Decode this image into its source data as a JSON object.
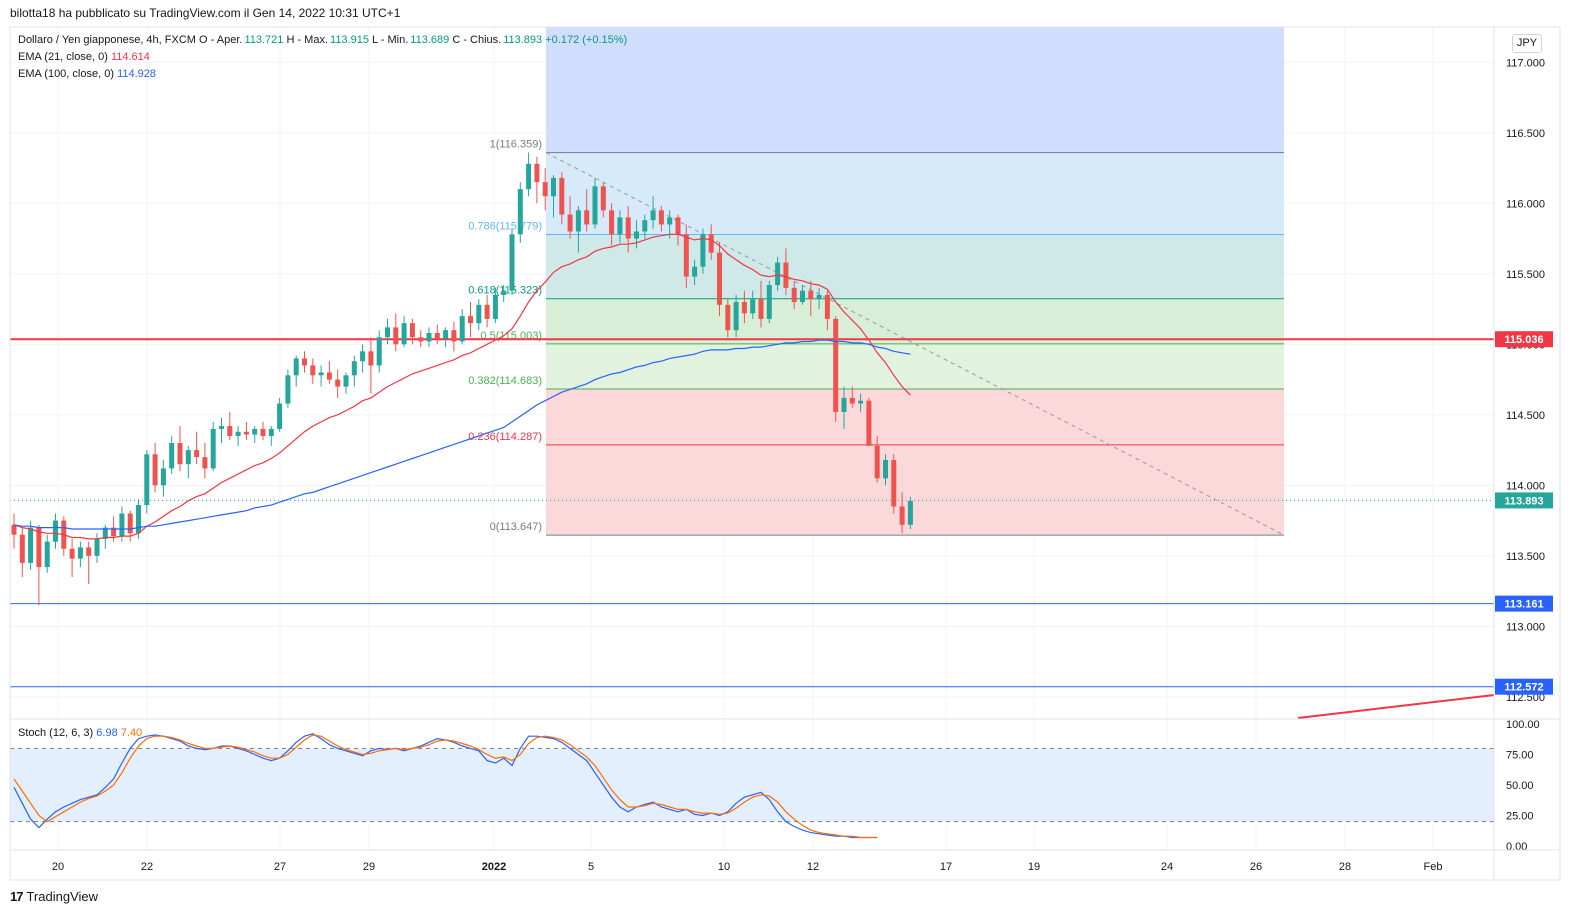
{
  "header": {
    "published_by": "bilotta18 ha pubblicato su TradingView.com il Gen 14, 2022 10:31 UTC+1"
  },
  "legend": {
    "symbol": "Dollaro / Yen giapponese, 4h, FXCM",
    "ohlc_o_label": "O - Aper.",
    "open": "113.721",
    "ohlc_h_label": "H - Max.",
    "high": "113.915",
    "ohlc_l_label": "L - Min.",
    "low": "113.689",
    "ohlc_c_label": "C - Chius.",
    "close": "113.893",
    "change": "+0.172 (+0.15%)",
    "ema21_label": "EMA (21, close, 0)",
    "ema21_value": "114.614",
    "ema100_label": "EMA (100, close, 0)",
    "ema100_value": "114.928",
    "stoch_label": "Stoch (12, 6, 3)",
    "stoch_k": "6.98",
    "stoch_d": "7.40"
  },
  "currency_button": "JPY",
  "brand": "TradingView",
  "colors": {
    "up": "#26a69a",
    "down": "#ef5350",
    "ema21": "#f23645",
    "ema100": "#2962ff",
    "stoch_k": "#2962ff",
    "stoch_d": "#ff6d00",
    "hline_red": "#f23645",
    "hline_blue": "#2962ff",
    "last_price": "#26a69a"
  },
  "chart_data": {
    "type": "candlestick",
    "symbol": "USDJPY",
    "interval": "4h",
    "ylim": [
      112.35,
      117.25
    ],
    "y_ticks": [
      "117.000",
      "116.500",
      "116.000",
      "115.500",
      "115.000",
      "114.500",
      "114.000",
      "113.500",
      "113.000",
      "112.500"
    ],
    "x_ticks": [
      "20",
      "22",
      "27",
      "29",
      "2022",
      "5",
      "10",
      "12",
      "17",
      "19",
      "24",
      "26",
      "28",
      "Feb"
    ],
    "candles": [
      [
        113.72,
        113.8,
        113.55,
        113.65
      ],
      [
        113.65,
        113.7,
        113.35,
        113.45
      ],
      [
        113.45,
        113.75,
        113.4,
        113.7
      ],
      [
        113.7,
        113.72,
        113.15,
        113.42
      ],
      [
        113.42,
        113.65,
        113.38,
        113.6
      ],
      [
        113.6,
        113.8,
        113.55,
        113.75
      ],
      [
        113.75,
        113.78,
        113.5,
        113.55
      ],
      [
        113.55,
        113.62,
        113.35,
        113.48
      ],
      [
        113.48,
        113.6,
        113.42,
        113.56
      ],
      [
        113.56,
        113.6,
        113.3,
        113.5
      ],
      [
        113.5,
        113.66,
        113.45,
        113.62
      ],
      [
        113.62,
        113.72,
        113.55,
        113.7
      ],
      [
        113.7,
        113.78,
        113.6,
        113.64
      ],
      [
        113.64,
        113.85,
        113.6,
        113.8
      ],
      [
        113.8,
        113.82,
        113.6,
        113.66
      ],
      [
        113.66,
        113.9,
        113.62,
        113.86
      ],
      [
        113.86,
        114.25,
        113.8,
        114.22
      ],
      [
        114.22,
        114.3,
        113.95,
        114.0
      ],
      [
        114.0,
        114.18,
        113.92,
        114.12
      ],
      [
        114.12,
        114.35,
        114.08,
        114.3
      ],
      [
        114.3,
        114.42,
        114.1,
        114.15
      ],
      [
        114.15,
        114.28,
        114.05,
        114.25
      ],
      [
        114.25,
        114.38,
        114.15,
        114.2
      ],
      [
        114.2,
        114.3,
        114.05,
        114.12
      ],
      [
        114.12,
        114.45,
        114.1,
        114.4
      ],
      [
        114.4,
        114.48,
        114.3,
        114.42
      ],
      [
        114.42,
        114.52,
        114.32,
        114.35
      ],
      [
        114.35,
        114.42,
        114.28,
        114.38
      ],
      [
        114.38,
        114.45,
        114.32,
        114.36
      ],
      [
        114.36,
        114.42,
        114.3,
        114.4
      ],
      [
        114.4,
        114.45,
        114.32,
        114.35
      ],
      [
        114.35,
        114.42,
        114.28,
        114.4
      ],
      [
        114.4,
        114.62,
        114.38,
        114.58
      ],
      [
        114.58,
        114.82,
        114.55,
        114.78
      ],
      [
        114.78,
        114.92,
        114.7,
        114.9
      ],
      [
        114.9,
        114.95,
        114.8,
        114.85
      ],
      [
        114.85,
        114.9,
        114.72,
        114.78
      ],
      [
        114.78,
        114.85,
        114.7,
        114.8
      ],
      [
        114.8,
        114.88,
        114.72,
        114.75
      ],
      [
        114.75,
        114.82,
        114.62,
        114.7
      ],
      [
        114.7,
        114.8,
        114.65,
        114.78
      ],
      [
        114.78,
        114.92,
        114.7,
        114.88
      ],
      [
        114.88,
        115.0,
        114.8,
        114.95
      ],
      [
        114.95,
        115.05,
        114.65,
        114.85
      ],
      [
        114.85,
        115.1,
        114.8,
        115.05
      ],
      [
        115.05,
        115.18,
        115.0,
        115.12
      ],
      [
        115.12,
        115.22,
        114.95,
        115.0
      ],
      [
        115.0,
        115.2,
        114.98,
        115.15
      ],
      [
        115.15,
        115.18,
        115.0,
        115.05
      ],
      [
        115.05,
        115.1,
        114.98,
        115.02
      ],
      [
        115.02,
        115.12,
        114.98,
        115.08
      ],
      [
        115.08,
        115.14,
        115.0,
        115.04
      ],
      [
        115.04,
        115.12,
        114.98,
        115.1
      ],
      [
        115.1,
        115.16,
        114.95,
        115.02
      ],
      [
        115.02,
        115.25,
        115.0,
        115.2
      ],
      [
        115.2,
        115.3,
        115.05,
        115.15
      ],
      [
        115.15,
        115.32,
        115.1,
        115.28
      ],
      [
        115.28,
        115.35,
        115.12,
        115.18
      ],
      [
        115.18,
        115.4,
        115.15,
        115.35
      ],
      [
        115.35,
        115.42,
        115.3,
        115.38
      ],
      [
        115.38,
        115.82,
        115.35,
        115.78
      ],
      [
        115.78,
        116.15,
        115.72,
        116.1
      ],
      [
        116.1,
        116.36,
        116.05,
        116.28
      ],
      [
        116.28,
        116.33,
        116.0,
        116.15
      ],
      [
        116.15,
        116.25,
        115.95,
        116.05
      ],
      [
        116.05,
        116.2,
        115.9,
        116.18
      ],
      [
        116.18,
        116.22,
        115.85,
        115.92
      ],
      [
        115.92,
        116.05,
        115.75,
        115.8
      ],
      [
        115.8,
        115.98,
        115.65,
        115.95
      ],
      [
        115.95,
        116.1,
        115.8,
        115.85
      ],
      [
        115.85,
        116.18,
        115.82,
        116.12
      ],
      [
        116.12,
        116.15,
        115.9,
        115.95
      ],
      [
        115.95,
        116.0,
        115.7,
        115.78
      ],
      [
        115.78,
        115.95,
        115.72,
        115.9
      ],
      [
        115.9,
        115.98,
        115.65,
        115.75
      ],
      [
        115.75,
        115.88,
        115.68,
        115.8
      ],
      [
        115.8,
        115.92,
        115.75,
        115.88
      ],
      [
        115.88,
        116.05,
        115.82,
        115.95
      ],
      [
        115.95,
        115.98,
        115.8,
        115.85
      ],
      [
        115.85,
        115.95,
        115.75,
        115.9
      ],
      [
        115.9,
        115.92,
        115.7,
        115.78
      ],
      [
        115.78,
        115.85,
        115.4,
        115.48
      ],
      [
        115.48,
        115.6,
        115.42,
        115.55
      ],
      [
        115.55,
        115.82,
        115.5,
        115.78
      ],
      [
        115.78,
        115.85,
        115.6,
        115.65
      ],
      [
        115.65,
        115.72,
        115.2,
        115.28
      ],
      [
        115.28,
        115.32,
        115.05,
        115.1
      ],
      [
        115.1,
        115.35,
        115.05,
        115.3
      ],
      [
        115.3,
        115.38,
        115.15,
        115.22
      ],
      [
        115.22,
        115.38,
        115.18,
        115.32
      ],
      [
        115.32,
        115.45,
        115.12,
        115.18
      ],
      [
        115.18,
        115.45,
        115.15,
        115.42
      ],
      [
        115.42,
        115.62,
        115.38,
        115.58
      ],
      [
        115.58,
        115.68,
        115.35,
        115.4
      ],
      [
        115.4,
        115.45,
        115.25,
        115.3
      ],
      [
        115.3,
        115.42,
        115.28,
        115.38
      ],
      [
        115.38,
        115.45,
        115.2,
        115.32
      ],
      [
        115.32,
        115.4,
        115.25,
        115.35
      ],
      [
        115.35,
        115.38,
        115.1,
        115.18
      ],
      [
        115.18,
        115.2,
        114.45,
        114.52
      ],
      [
        114.52,
        114.7,
        114.4,
        114.62
      ],
      [
        114.62,
        114.7,
        114.55,
        114.58
      ],
      [
        114.58,
        114.65,
        114.52,
        114.6
      ],
      [
        114.6,
        114.62,
        114.3,
        114.28
      ],
      [
        114.28,
        114.35,
        114.02,
        114.05
      ],
      [
        114.05,
        114.22,
        114.0,
        114.18
      ],
      [
        114.18,
        114.22,
        113.8,
        113.85
      ],
      [
        113.85,
        113.95,
        113.66,
        113.72
      ],
      [
        113.72,
        113.92,
        113.69,
        113.89
      ]
    ],
    "ema21": [
      113.72,
      113.7,
      113.69,
      113.67,
      113.66,
      113.66,
      113.65,
      113.63,
      113.63,
      113.62,
      113.62,
      113.63,
      113.63,
      113.64,
      113.64,
      113.66,
      113.71,
      113.74,
      113.78,
      113.82,
      113.85,
      113.89,
      113.92,
      113.94,
      113.98,
      114.02,
      114.05,
      114.08,
      114.11,
      114.14,
      114.16,
      114.19,
      114.23,
      114.28,
      114.33,
      114.38,
      114.42,
      114.45,
      114.48,
      114.5,
      114.53,
      114.56,
      114.6,
      114.62,
      114.66,
      114.7,
      114.73,
      114.76,
      114.79,
      114.81,
      114.83,
      114.85,
      114.87,
      114.89,
      114.92,
      114.94,
      114.97,
      115.0,
      115.03,
      115.06,
      115.11,
      115.2,
      115.3,
      115.38,
      115.44,
      115.51,
      115.55,
      115.57,
      115.6,
      115.62,
      115.66,
      115.68,
      115.69,
      115.71,
      115.71,
      115.72,
      115.74,
      115.76,
      115.77,
      115.78,
      115.78,
      115.76,
      115.74,
      115.75,
      115.74,
      115.7,
      115.64,
      115.6,
      115.56,
      115.53,
      115.49,
      115.48,
      115.49,
      115.48,
      115.46,
      115.45,
      115.43,
      115.42,
      115.39,
      115.3,
      115.23,
      115.17,
      115.11,
      115.03,
      114.94,
      114.87,
      114.78,
      114.7,
      114.64
    ],
    "ema100": [
      113.72,
      113.71,
      113.71,
      113.7,
      113.7,
      113.7,
      113.7,
      113.69,
      113.69,
      113.69,
      113.69,
      113.69,
      113.69,
      113.69,
      113.69,
      113.7,
      113.71,
      113.71,
      113.72,
      113.73,
      113.74,
      113.75,
      113.76,
      113.77,
      113.78,
      113.79,
      113.8,
      113.81,
      113.82,
      113.84,
      113.85,
      113.86,
      113.88,
      113.9,
      113.92,
      113.94,
      113.95,
      113.97,
      113.99,
      114.01,
      114.03,
      114.05,
      114.07,
      114.09,
      114.11,
      114.13,
      114.15,
      114.17,
      114.19,
      114.21,
      114.23,
      114.25,
      114.27,
      114.29,
      114.31,
      114.33,
      114.35,
      114.37,
      114.39,
      114.41,
      114.45,
      114.49,
      114.53,
      114.57,
      114.6,
      114.63,
      114.66,
      114.68,
      114.7,
      114.72,
      114.75,
      114.77,
      114.79,
      114.8,
      114.82,
      114.84,
      114.85,
      114.87,
      114.88,
      114.9,
      114.91,
      114.92,
      114.93,
      114.95,
      114.96,
      114.96,
      114.96,
      114.97,
      114.97,
      114.98,
      114.98,
      114.99,
      115.0,
      115.01,
      115.01,
      115.02,
      115.02,
      115.03,
      115.03,
      115.02,
      115.02,
      115.01,
      115.01,
      115.0,
      114.98,
      114.97,
      114.95,
      114.94,
      114.93
    ],
    "stoch_k": [
      48,
      35,
      22,
      15,
      22,
      28,
      32,
      35,
      38,
      40,
      42,
      48,
      55,
      68,
      80,
      88,
      90,
      91,
      90,
      88,
      86,
      82,
      80,
      79,
      80,
      82,
      82,
      80,
      78,
      75,
      72,
      70,
      72,
      78,
      85,
      90,
      92,
      88,
      83,
      80,
      78,
      76,
      74,
      78,
      80,
      79,
      80,
      78,
      80,
      82,
      85,
      88,
      87,
      85,
      82,
      80,
      78,
      70,
      68,
      72,
      66,
      80,
      90,
      90,
      89,
      88,
      85,
      80,
      75,
      70,
      60,
      50,
      40,
      32,
      28,
      32,
      34,
      36,
      32,
      30,
      28,
      30,
      26,
      25,
      27,
      25,
      28,
      35,
      40,
      42,
      44,
      38,
      28,
      20,
      16,
      13,
      11,
      10,
      9,
      8,
      8,
      7,
      7,
      7,
      7
    ],
    "stoch_d": [
      55,
      45,
      35,
      25,
      20,
      24,
      28,
      32,
      36,
      39,
      41,
      45,
      50,
      60,
      72,
      82,
      88,
      90,
      90,
      89,
      87,
      84,
      82,
      80,
      80,
      81,
      82,
      81,
      79,
      77,
      74,
      72,
      72,
      75,
      81,
      87,
      91,
      90,
      86,
      82,
      79,
      77,
      75,
      76,
      78,
      79,
      80,
      79,
      80,
      81,
      83,
      86,
      87,
      86,
      84,
      82,
      79,
      75,
      72,
      73,
      70,
      75,
      84,
      89,
      90,
      89,
      87,
      83,
      78,
      73,
      66,
      56,
      46,
      38,
      32,
      32,
      33,
      35,
      34,
      32,
      30,
      30,
      28,
      27,
      27,
      26,
      27,
      31,
      36,
      40,
      42,
      41,
      36,
      28,
      22,
      17,
      13,
      11,
      10,
      9,
      8,
      8,
      7,
      7,
      7
    ],
    "stoch_ylim": [
      0,
      100
    ],
    "stoch_ticks": [
      "100.00",
      "75.00",
      "50.00",
      "25.00",
      "0.00"
    ],
    "stoch_band": [
      20,
      80
    ],
    "fibonacci": {
      "high": 116.359,
      "low": 113.647,
      "levels": [
        {
          "ratio": 1,
          "price": 116.359,
          "label": "1(116.359)",
          "color": "#787b86",
          "fill": "#e3e3e5"
        },
        {
          "ratio": 0.786,
          "price": 115.779,
          "label": "0.786(115.779)",
          "color": "#64b5f6",
          "fill": "#d6eaf9"
        },
        {
          "ratio": 0.618,
          "price": 115.323,
          "label": "0.618(115.323)",
          "color": "#089981",
          "fill": "#cfe9e9"
        },
        {
          "ratio": 0.5,
          "price": 115.003,
          "label": "0.5(115.003)",
          "color": "#4caf50",
          "fill": "#d8eed7"
        },
        {
          "ratio": 0.382,
          "price": 114.683,
          "label": "0.382(114.683)",
          "color": "#4caf50",
          "fill": "#e1f2df"
        },
        {
          "ratio": 0.236,
          "price": 114.287,
          "label": "0.236(114.287)",
          "color": "#f23645",
          "fill": "#fbd9da"
        },
        {
          "ratio": 0,
          "price": 113.647,
          "label": "0(113.647)",
          "color": "#787b86",
          "fill": "#fbd9da"
        }
      ],
      "extension_fill": "#d0ddfc"
    },
    "hlines": [
      {
        "price": 115.036,
        "label": "115.036",
        "color": "#f23645"
      },
      {
        "price": 113.161,
        "label": "113.161",
        "color": "#2962ff"
      },
      {
        "price": 112.572,
        "label": "112.572",
        "color": "#2962ff"
      }
    ],
    "last_price": {
      "price": 113.893,
      "label": "113.893"
    }
  }
}
